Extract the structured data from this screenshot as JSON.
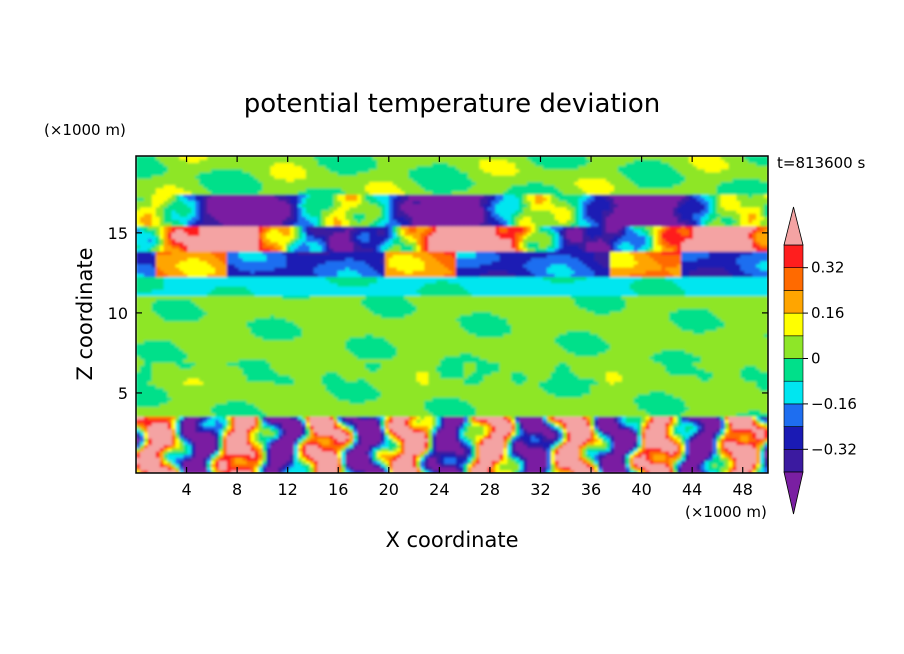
{
  "chart_data": {
    "type": "heatmap",
    "title": "potential temperature deviation",
    "xlabel": "X coordinate",
    "ylabel": "Z coordinate",
    "x_unit": "(×1000 m)",
    "y_unit": "(×1000 m)",
    "time_label": "t=813600 s",
    "xlim": [
      0,
      50
    ],
    "ylim": [
      0,
      19.8
    ],
    "x_ticks": [
      4,
      8,
      12,
      16,
      20,
      24,
      28,
      32,
      36,
      40,
      44,
      48
    ],
    "y_ticks": [
      5,
      10,
      15
    ],
    "colorbar": {
      "levels": [
        -0.4,
        -0.32,
        -0.24,
        -0.16,
        -0.08,
        0,
        0.08,
        0.16,
        0.24,
        0.32,
        0.4
      ],
      "tick_values": [
        0.32,
        0.16,
        0,
        -0.16,
        -0.32
      ],
      "tick_labels": [
        "0.32",
        "0.16",
        "0",
        "−0.16",
        "−0.32"
      ],
      "colors": [
        "#7a1fa2",
        "#3b1aa0",
        "#1a1ab4",
        "#1e6ef0",
        "#00e6f0",
        "#00e08a",
        "#8ee628",
        "#ffff00",
        "#ffa500",
        "#ff6a00",
        "#ff1e1e",
        "#f4a3a3"
      ]
    },
    "layers": [
      {
        "z_range": [
          17.5,
          19.8
        ],
        "description": "near-neutral band",
        "value": 0.0
      },
      {
        "z_range": [
          15.5,
          17.5
        ],
        "value": -0.36
      },
      {
        "z_range": [
          13.8,
          15.5
        ],
        "value": 0.42
      },
      {
        "z_range": [
          12.2,
          13.8
        ],
        "value": -0.28
      },
      {
        "z_range": [
          11.0,
          12.2
        ],
        "value": -0.1
      },
      {
        "z_range": [
          3.5,
          11.0
        ],
        "value": 0.02
      },
      {
        "z_range": [
          0,
          3.5
        ],
        "value": 0.2
      }
    ]
  }
}
